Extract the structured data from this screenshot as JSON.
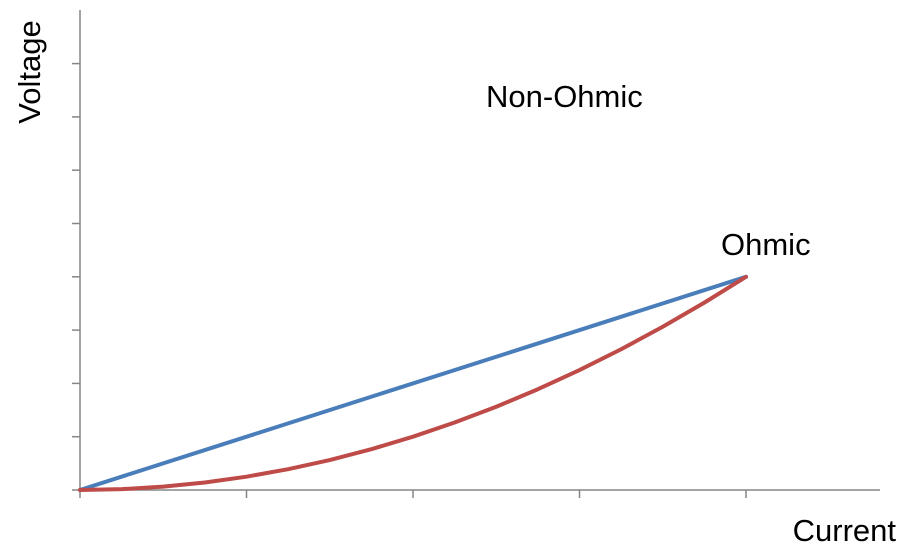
{
  "chart_data": {
    "type": "line",
    "title": "",
    "xlabel": "Current",
    "ylabel": "Voltage",
    "xlim": [
      0,
      4.8
    ],
    "ylim": [
      0,
      8
    ],
    "x_ticks": [
      0,
      1,
      2,
      3,
      4
    ],
    "y_ticks": [
      0,
      1,
      2,
      3,
      4,
      5,
      6,
      7,
      8
    ],
    "tick_labels_visible": false,
    "grid": false,
    "legend": "none",
    "series": [
      {
        "name": "Ohmic",
        "color": "#4a7ebb",
        "points": [
          [
            0,
            0
          ],
          [
            4,
            4
          ]
        ]
      },
      {
        "name": "Non-Ohmic",
        "color": "#be4b48",
        "points": [
          [
            0,
            0
          ],
          [
            0.25,
            0.0156
          ],
          [
            0.5,
            0.0625
          ],
          [
            0.75,
            0.1406
          ],
          [
            1,
            0.25
          ],
          [
            1.25,
            0.3906
          ],
          [
            1.5,
            0.5625
          ],
          [
            1.75,
            0.7656
          ],
          [
            2,
            1.0
          ],
          [
            2.25,
            1.2656
          ],
          [
            2.5,
            1.5625
          ],
          [
            2.75,
            1.8906
          ],
          [
            3,
            2.25
          ],
          [
            3.25,
            2.6406
          ],
          [
            3.5,
            3.0625
          ],
          [
            3.75,
            3.5156
          ],
          [
            4,
            4.0
          ]
        ]
      }
    ]
  }
}
